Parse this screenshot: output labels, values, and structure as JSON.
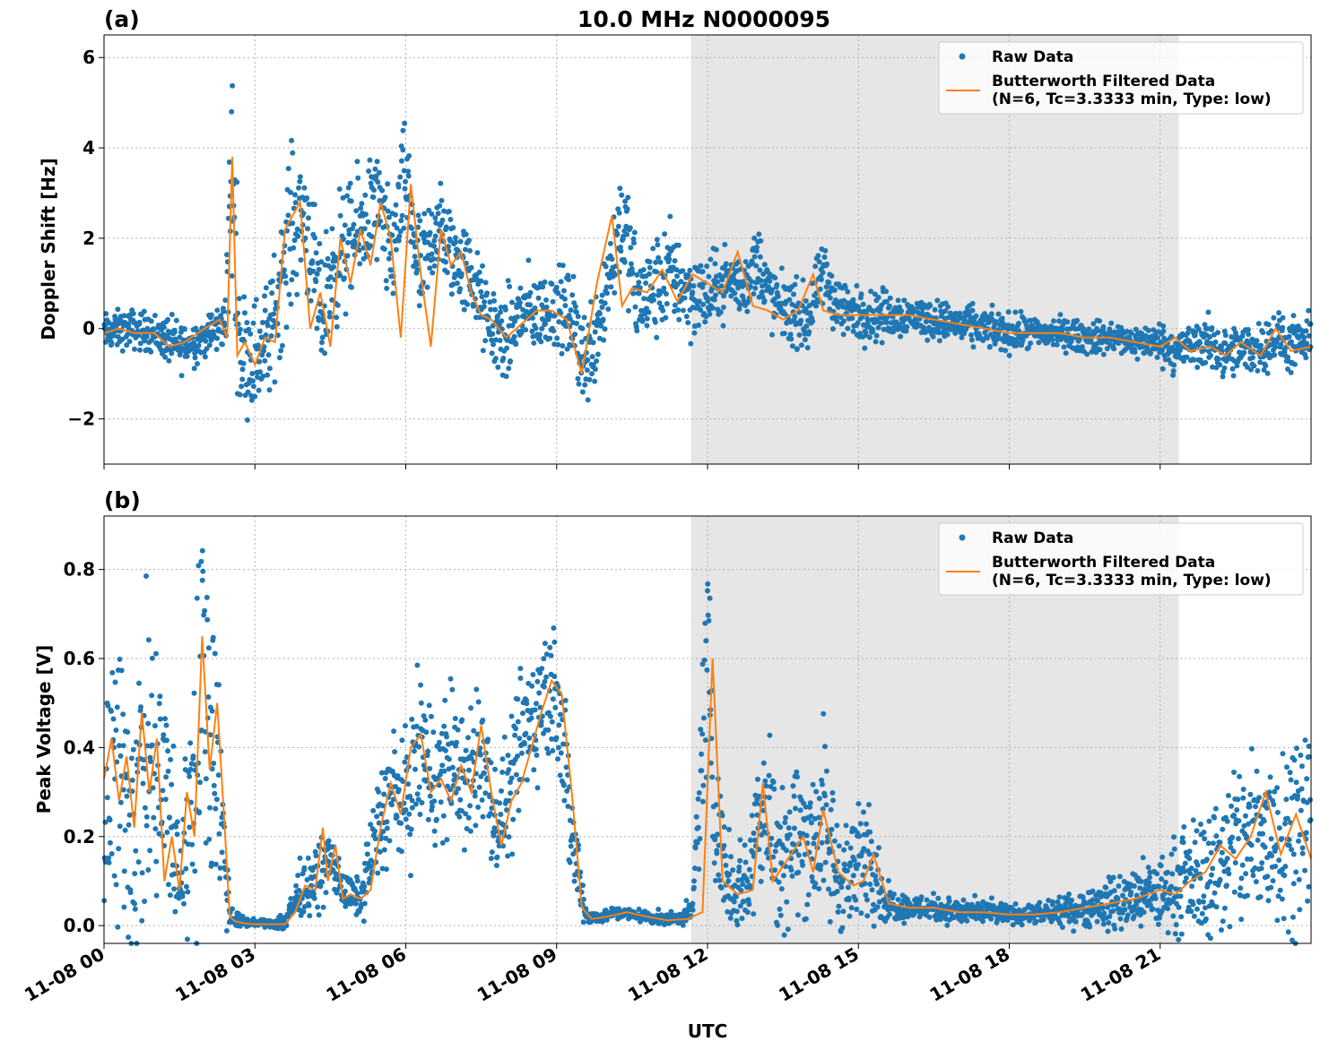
{
  "title": "10.0 MHz N0000095",
  "xlabel": "UTC",
  "x_tick_labels": [
    "11-08 00",
    "11-08 03",
    "11-08 06",
    "11-08 09",
    "11-08 12",
    "11-08 15",
    "11-08 18",
    "11-08 21"
  ],
  "colors": {
    "raw": "#1f77b4",
    "filtered": "#ff7f0e",
    "shade": "#e6e6e6"
  },
  "chart_data": [
    {
      "type": "scatter",
      "panel_label": "(a)",
      "ylabel": "Doppler Shift [Hz]",
      "xlim_hours": [
        0,
        24
      ],
      "ylim": [
        -3.0,
        6.5
      ],
      "y_ticks": [
        -2,
        0,
        2,
        4,
        6
      ],
      "y_tick_labels": [
        "−2",
        "0",
        "2",
        "4",
        "6"
      ],
      "grid": true,
      "legend_placement": "top-right",
      "shaded_span_hours": [
        11.67,
        21.37
      ],
      "series": [
        {
          "name": "Raw Data",
          "style": "points",
          "color": "#1f77b4",
          "x_hours": [
            0,
            0.5,
            1,
            1.5,
            2,
            2.4,
            2.55,
            2.7,
            3,
            3.3,
            3.7,
            4,
            4.3,
            4.6,
            5,
            5.4,
            5.7,
            6,
            6.3,
            6.6,
            7,
            7.3,
            7.6,
            8,
            8.3,
            8.6,
            9,
            9.3,
            9.6,
            10,
            10.3,
            10.6,
            11,
            11.3,
            11.6,
            12,
            12.4,
            12.7,
            13,
            13.3,
            13.6,
            14,
            14.3,
            14.6,
            15,
            15.5,
            16,
            16.5,
            17,
            17.5,
            18,
            18.5,
            19,
            19.5,
            20,
            20.5,
            21,
            21.3,
            21.6,
            22,
            22.3,
            22.6,
            23,
            23.3,
            23.6,
            24
          ],
          "y_hz": [
            -0.1,
            0,
            -0.1,
            -0.4,
            -0.2,
            0.1,
            3.5,
            -0.4,
            -0.6,
            -0.2,
            2.2,
            2.6,
            0.2,
            1.5,
            2.0,
            2.8,
            1.5,
            3.3,
            1.0,
            2.3,
            1.5,
            1.2,
            0.2,
            -0.3,
            0.4,
            0.3,
            0.5,
            0.2,
            -0.8,
            1.0,
            2.5,
            0.6,
            0.9,
            1.3,
            0.8,
            0.7,
            1.1,
            0.9,
            1.5,
            0.6,
            0.4,
            0.2,
            1.2,
            0.5,
            0.3,
            0.3,
            0.3,
            0.2,
            0.1,
            0.0,
            -0.1,
            -0.1,
            -0.1,
            -0.2,
            -0.2,
            -0.3,
            -0.3,
            -0.5,
            -0.4,
            -0.3,
            -0.6,
            -0.5,
            -0.4,
            -0.2,
            -0.4,
            -0.3
          ],
          "spread_hz": [
            0.3,
            0.3,
            0.3,
            0.4,
            0.3,
            0.4,
            2.0,
            0.9,
            0.9,
            0.9,
            1.2,
            1.0,
            1.0,
            1.0,
            0.9,
            0.9,
            0.9,
            0.9,
            0.9,
            0.8,
            0.7,
            0.7,
            0.6,
            0.7,
            0.7,
            0.6,
            0.6,
            0.7,
            0.8,
            0.8,
            0.9,
            0.8,
            0.8,
            0.8,
            0.7,
            0.6,
            0.5,
            0.5,
            0.6,
            0.5,
            0.5,
            0.5,
            0.5,
            0.5,
            0.4,
            0.4,
            0.3,
            0.3,
            0.3,
            0.3,
            0.3,
            0.25,
            0.25,
            0.25,
            0.25,
            0.25,
            0.3,
            0.35,
            0.35,
            0.4,
            0.4,
            0.4,
            0.4,
            0.4,
            0.4,
            0.4
          ]
        },
        {
          "name": "Butterworth Filtered Data\n(N=6, Tc=3.3333 min, Type: low)",
          "style": "line",
          "color": "#ff7f0e",
          "x_hours": [
            0,
            0.3,
            0.6,
            1,
            1.3,
            1.6,
            2,
            2.3,
            2.45,
            2.55,
            2.65,
            2.8,
            3,
            3.2,
            3.4,
            3.6,
            3.9,
            4.1,
            4.3,
            4.5,
            4.7,
            4.9,
            5.1,
            5.3,
            5.5,
            5.7,
            5.9,
            6.1,
            6.3,
            6.5,
            6.7,
            6.9,
            7.1,
            7.3,
            7.5,
            7.7,
            8,
            8.3,
            8.6,
            8.9,
            9.2,
            9.5,
            9.8,
            10.1,
            10.3,
            10.5,
            10.8,
            11.1,
            11.4,
            11.7,
            12,
            12.3,
            12.6,
            12.9,
            13.2,
            13.5,
            13.8,
            14.1,
            14.3,
            14.6,
            15,
            15.5,
            16,
            16.5,
            17,
            17.5,
            18,
            18.5,
            19,
            19.5,
            20,
            20.5,
            21,
            21.3,
            21.6,
            22,
            22.3,
            22.6,
            23,
            23.3,
            23.6,
            24
          ],
          "y_hz": [
            -0.1,
            0.0,
            -0.1,
            -0.1,
            -0.4,
            -0.3,
            0.0,
            0.2,
            -0.2,
            3.8,
            -0.6,
            -0.3,
            -0.8,
            -0.2,
            -0.3,
            2.2,
            2.8,
            0.0,
            0.8,
            -0.4,
            2.0,
            1.0,
            2.2,
            1.4,
            2.8,
            2.0,
            -0.2,
            3.2,
            1.2,
            -0.4,
            2.2,
            1.4,
            1.7,
            0.8,
            0.3,
            0.2,
            -0.2,
            0.1,
            0.4,
            0.4,
            0.2,
            -1.0,
            1.0,
            2.5,
            0.5,
            0.9,
            0.8,
            1.3,
            0.6,
            1.2,
            1.0,
            0.8,
            1.7,
            0.5,
            0.4,
            0.2,
            0.4,
            1.2,
            0.4,
            0.3,
            0.3,
            0.3,
            0.3,
            0.2,
            0.1,
            0.0,
            -0.1,
            -0.1,
            -0.1,
            -0.2,
            -0.2,
            -0.3,
            -0.4,
            -0.2,
            -0.5,
            -0.4,
            -0.6,
            -0.3,
            -0.6,
            0.0,
            -0.5,
            -0.4
          ]
        }
      ]
    },
    {
      "type": "scatter",
      "panel_label": "(b)",
      "ylabel": "Peak Voltage [V]",
      "xlim_hours": [
        0,
        24
      ],
      "ylim": [
        -0.04,
        0.92
      ],
      "y_ticks": [
        0.0,
        0.2,
        0.4,
        0.6,
        0.8
      ],
      "y_tick_labels": [
        "0.0",
        "0.2",
        "0.4",
        "0.6",
        "0.8"
      ],
      "grid": true,
      "legend_placement": "top-right",
      "shaded_span_hours": [
        11.67,
        21.37
      ],
      "series": [
        {
          "name": "Raw Data",
          "style": "points",
          "color": "#1f77b4",
          "x_hours": [
            0,
            0.3,
            0.6,
            0.9,
            1.2,
            1.5,
            1.8,
            2.0,
            2.3,
            2.5,
            2.7,
            3.0,
            3.3,
            3.6,
            3.9,
            4.2,
            4.5,
            4.8,
            5.1,
            5.4,
            5.7,
            6.0,
            6.3,
            6.6,
            6.9,
            7.2,
            7.5,
            7.8,
            8.1,
            8.4,
            8.7,
            9.0,
            9.3,
            9.6,
            9.9,
            10.2,
            10.5,
            10.8,
            11.1,
            11.4,
            11.7,
            12.0,
            12.2,
            12.5,
            12.8,
            13.1,
            13.4,
            13.7,
            14.0,
            14.3,
            14.6,
            14.9,
            15.2,
            15.5,
            16.0,
            16.5,
            17.0,
            17.5,
            18.0,
            18.5,
            19.0,
            19.5,
            20.0,
            20.5,
            21.0,
            21.5,
            22.0,
            22.5,
            23.0,
            23.5,
            24.0
          ],
          "y_v": [
            0.35,
            0.3,
            0.25,
            0.35,
            0.3,
            0.1,
            0.35,
            0.6,
            0.3,
            0.02,
            0.01,
            0.005,
            0.005,
            0.01,
            0.08,
            0.1,
            0.15,
            0.07,
            0.06,
            0.2,
            0.3,
            0.28,
            0.4,
            0.32,
            0.38,
            0.3,
            0.4,
            0.22,
            0.3,
            0.45,
            0.5,
            0.55,
            0.2,
            0.02,
            0.02,
            0.03,
            0.025,
            0.02,
            0.015,
            0.015,
            0.03,
            0.6,
            0.2,
            0.08,
            0.1,
            0.3,
            0.15,
            0.2,
            0.2,
            0.22,
            0.12,
            0.1,
            0.2,
            0.05,
            0.04,
            0.04,
            0.03,
            0.03,
            0.025,
            0.025,
            0.03,
            0.04,
            0.05,
            0.06,
            0.07,
            0.1,
            0.12,
            0.18,
            0.2,
            0.22,
            0.25
          ],
          "spread_v": [
            0.25,
            0.25,
            0.25,
            0.25,
            0.2,
            0.1,
            0.25,
            0.25,
            0.2,
            0.02,
            0.01,
            0.005,
            0.005,
            0.02,
            0.04,
            0.05,
            0.05,
            0.03,
            0.03,
            0.08,
            0.1,
            0.1,
            0.12,
            0.12,
            0.12,
            0.1,
            0.12,
            0.08,
            0.1,
            0.12,
            0.12,
            0.12,
            0.1,
            0.01,
            0.01,
            0.01,
            0.01,
            0.01,
            0.01,
            0.01,
            0.02,
            0.2,
            0.1,
            0.06,
            0.08,
            0.15,
            0.12,
            0.12,
            0.12,
            0.15,
            0.1,
            0.08,
            0.12,
            0.03,
            0.02,
            0.02,
            0.02,
            0.02,
            0.015,
            0.015,
            0.02,
            0.03,
            0.04,
            0.05,
            0.06,
            0.08,
            0.1,
            0.14,
            0.15,
            0.15,
            0.15
          ]
        },
        {
          "name": "Butterworth Filtered Data\n(N=6, Tc=3.3333 min, Type: low)",
          "style": "line",
          "color": "#ff7f0e",
          "x_hours": [
            0,
            0.15,
            0.3,
            0.45,
            0.6,
            0.75,
            0.9,
            1.05,
            1.2,
            1.35,
            1.5,
            1.65,
            1.8,
            1.95,
            2.1,
            2.25,
            2.4,
            2.5,
            2.6,
            2.8,
            3.0,
            3.3,
            3.6,
            3.8,
            4.0,
            4.2,
            4.35,
            4.45,
            4.6,
            4.75,
            4.9,
            5.1,
            5.3,
            5.5,
            5.7,
            5.9,
            6.1,
            6.3,
            6.5,
            6.7,
            6.9,
            7.1,
            7.3,
            7.5,
            7.7,
            7.9,
            8.1,
            8.3,
            8.5,
            8.7,
            8.9,
            9.1,
            9.3,
            9.5,
            9.7,
            10.0,
            10.4,
            10.8,
            11.2,
            11.6,
            11.9,
            12.1,
            12.3,
            12.6,
            12.9,
            13.1,
            13.3,
            13.6,
            13.9,
            14.1,
            14.3,
            14.6,
            14.9,
            15.1,
            15.3,
            15.6,
            16.0,
            16.5,
            17.0,
            17.5,
            18.0,
            18.5,
            19.0,
            19.5,
            20.0,
            20.5,
            21.0,
            21.3,
            21.6,
            21.9,
            22.2,
            22.5,
            22.8,
            23.1,
            23.4,
            23.7,
            24.0
          ],
          "y_v": [
            0.33,
            0.42,
            0.28,
            0.38,
            0.22,
            0.48,
            0.3,
            0.42,
            0.1,
            0.2,
            0.08,
            0.3,
            0.2,
            0.65,
            0.35,
            0.5,
            0.22,
            0.02,
            0.01,
            0.005,
            0.003,
            0.003,
            0.003,
            0.03,
            0.09,
            0.08,
            0.22,
            0.1,
            0.18,
            0.06,
            0.07,
            0.06,
            0.08,
            0.22,
            0.32,
            0.25,
            0.4,
            0.43,
            0.3,
            0.33,
            0.28,
            0.36,
            0.3,
            0.45,
            0.3,
            0.18,
            0.28,
            0.32,
            0.4,
            0.48,
            0.55,
            0.52,
            0.3,
            0.04,
            0.015,
            0.02,
            0.03,
            0.02,
            0.012,
            0.015,
            0.03,
            0.6,
            0.1,
            0.07,
            0.08,
            0.32,
            0.1,
            0.15,
            0.2,
            0.12,
            0.26,
            0.12,
            0.09,
            0.1,
            0.16,
            0.05,
            0.04,
            0.04,
            0.03,
            0.03,
            0.025,
            0.025,
            0.03,
            0.04,
            0.05,
            0.06,
            0.08,
            0.07,
            0.1,
            0.12,
            0.18,
            0.15,
            0.2,
            0.3,
            0.16,
            0.25,
            0.15
          ]
        }
      ]
    }
  ]
}
